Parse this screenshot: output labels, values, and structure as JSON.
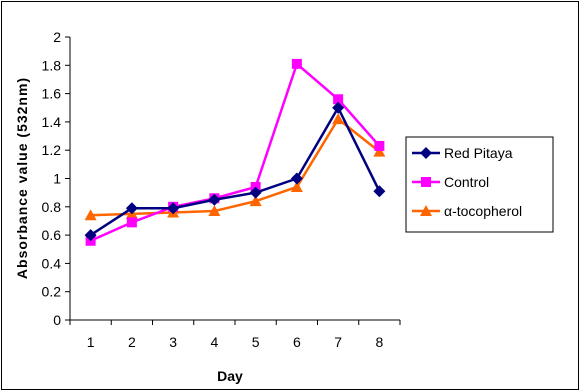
{
  "chart_data": {
    "type": "line",
    "title": "",
    "xlabel": "Day",
    "ylabel": "Absorbance value (532nm)",
    "categories": [
      "1",
      "2",
      "3",
      "4",
      "5",
      "6",
      "7",
      "8"
    ],
    "yticks": [
      "0",
      "0.2",
      "0.4",
      "0.6",
      "0.8",
      "1",
      "1.2",
      "1.4",
      "1.6",
      "1.8",
      "2"
    ],
    "ylim": [
      0,
      2
    ],
    "grid": false,
    "legend_position": "right",
    "series": [
      {
        "name": "Red Pitaya",
        "color": "#000080",
        "marker": "diamond",
        "values": [
          0.6,
          0.79,
          0.79,
          0.85,
          0.9,
          1.0,
          1.5,
          0.91
        ]
      },
      {
        "name": "Control",
        "color": "#FF00FF",
        "marker": "square",
        "values": [
          0.56,
          0.69,
          0.8,
          0.86,
          0.94,
          1.81,
          1.56,
          1.23
        ]
      },
      {
        "name": "α-tocopherol",
        "color": "#FF6600",
        "marker": "triangle",
        "values": [
          0.74,
          0.75,
          0.76,
          0.77,
          0.84,
          0.94,
          1.42,
          1.19
        ]
      }
    ]
  }
}
